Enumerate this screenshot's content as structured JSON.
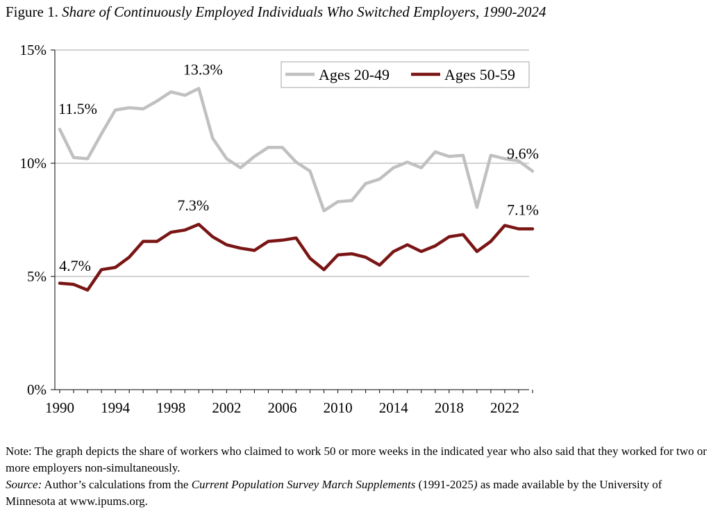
{
  "figure": {
    "label": "Figure 1.",
    "title": "Share of Continuously Employed Individuals Who Switched Employers, 1990-2024"
  },
  "colors": {
    "series1": "#c0c0c0",
    "series2": "#7a1515",
    "grid": "#a6a6a6",
    "axis": "#000000"
  },
  "chart_data": {
    "type": "line",
    "title": "Share of Continuously Employed Individuals Who Switched Employers, 1990-2024",
    "xlabel": "",
    "ylabel": "",
    "xlim": [
      1990,
      2024
    ],
    "ylim": [
      0,
      15
    ],
    "x_ticks": [
      1990,
      1994,
      1998,
      2002,
      2006,
      2010,
      2014,
      2018,
      2022
    ],
    "x_tick_labels": [
      "1990",
      "1994",
      "1998",
      "2002",
      "2006",
      "2010",
      "2014",
      "2018",
      "2022"
    ],
    "y_ticks": [
      0,
      5,
      10,
      15
    ],
    "y_tick_labels": [
      "0%",
      "5%",
      "10%",
      "15%"
    ],
    "grid": true,
    "legend_position": "top-right",
    "x": [
      1990,
      1991,
      1992,
      1993,
      1994,
      1995,
      1996,
      1997,
      1998,
      1999,
      2000,
      2001,
      2002,
      2003,
      2004,
      2005,
      2006,
      2007,
      2008,
      2009,
      2010,
      2011,
      2012,
      2013,
      2014,
      2015,
      2016,
      2017,
      2018,
      2019,
      2020,
      2021,
      2022,
      2023,
      2024
    ],
    "series": [
      {
        "name": "Ages 20-49",
        "values": [
          11.5,
          10.25,
          10.2,
          11.3,
          12.35,
          12.45,
          12.4,
          12.75,
          13.15,
          13.0,
          13.3,
          11.1,
          10.2,
          9.8,
          10.3,
          10.7,
          10.7,
          10.05,
          9.65,
          7.9,
          8.3,
          8.35,
          9.1,
          9.3,
          9.8,
          10.05,
          9.8,
          10.5,
          10.3,
          10.35,
          8.05,
          10.35,
          10.2,
          10.1,
          9.65
        ],
        "annotations": [
          {
            "index": 0,
            "text": "11.5%"
          },
          {
            "index": 10,
            "text": "13.3%"
          },
          {
            "index": 34,
            "text": "9.6%"
          }
        ]
      },
      {
        "name": "Ages 50-59",
        "values": [
          4.7,
          4.65,
          4.4,
          5.3,
          5.4,
          5.85,
          6.55,
          6.55,
          6.95,
          7.05,
          7.3,
          6.75,
          6.4,
          6.25,
          6.15,
          6.55,
          6.6,
          6.7,
          5.8,
          5.3,
          5.95,
          6.0,
          5.85,
          5.5,
          6.1,
          6.4,
          6.1,
          6.35,
          6.75,
          6.85,
          6.1,
          6.55,
          7.25,
          7.1,
          7.1
        ],
        "annotations": [
          {
            "index": 0,
            "text": "4.7%"
          },
          {
            "index": 10,
            "text": "7.3%"
          },
          {
            "index": 34,
            "text": "7.1%"
          }
        ]
      }
    ]
  },
  "note": {
    "text": "Note: The graph depicts the share of workers who claimed to work 50 or more weeks in the indicated year who also said that they worked for two or more employers non-simultaneously.",
    "source_label": "Source:",
    "source_pre": " Author’s calculations from the ",
    "source_title": "Current Population Survey March Supplements",
    "source_years": " (1991-2025",
    "source_paren": ")",
    "source_post": " as made available by the University of Minnesota at www.ipums.org."
  }
}
